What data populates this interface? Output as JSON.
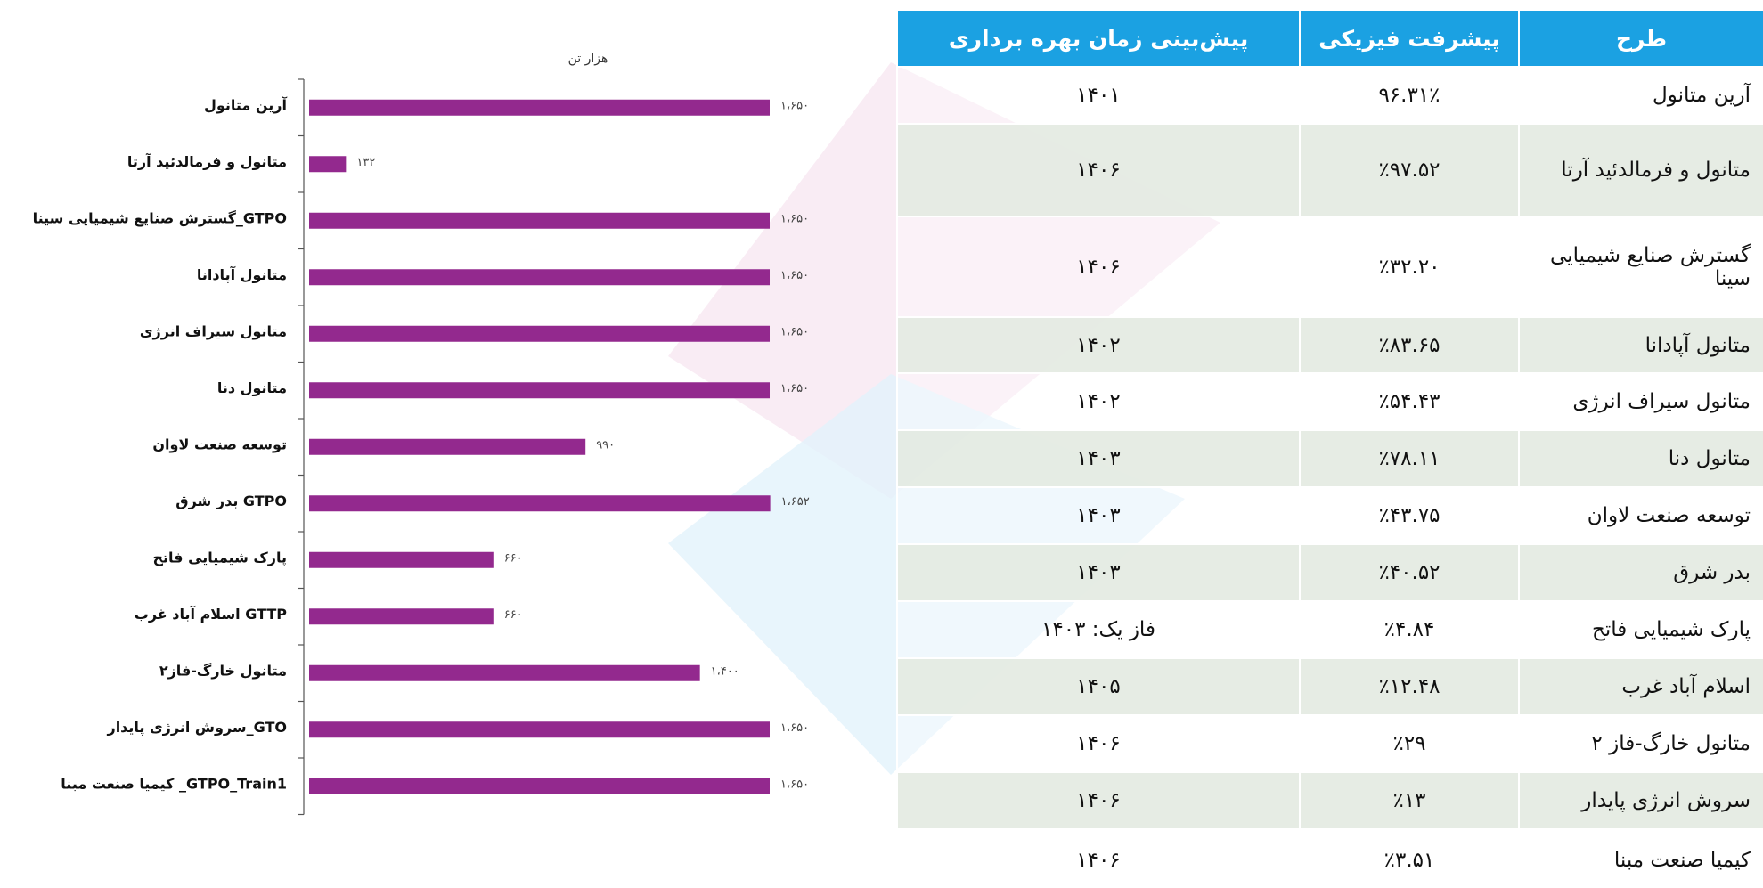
{
  "chart_data": {
    "type": "barh",
    "subtitle": "هزار تن",
    "categories": [
      "آرین متانول",
      "متانول و فرمالدئید آرتا",
      "گسترش صنایع شیمیایی سینا_GTPO",
      "متانول آپادانا",
      "متانول سیراف انرژی",
      "متانول دنا",
      "توسعه صنعت لاوان",
      "بدر شرق  GTPO",
      "پارک شیمیایی فاتح",
      "اسلام آباد غرب  GTTP",
      "متانول خارگ-فاز۲",
      "سروش انرژی پایدار_GTO",
      "کیمیا صنعت مبنا _GTPO_Train1"
    ],
    "values": [
      1650,
      132,
      1650,
      1650,
      1650,
      1650,
      990,
      1652,
      660,
      660,
      1400,
      1650,
      1650
    ],
    "value_labels": [
      "۱،۶۵۰",
      "۱۳۲",
      "۱،۶۵۰",
      "۱،۶۵۰",
      "۱،۶۵۰",
      "۱،۶۵۰",
      "۹۹۰",
      "۱،۶۵۲",
      "۶۶۰",
      "۶۶۰",
      "۱،۴۰۰",
      "۱،۶۵۰",
      "۱،۶۵۰"
    ],
    "color": "#93298e",
    "xlim": [
      0,
      1800
    ]
  },
  "table": {
    "header": [
      "طرح",
      "پیشرفت فیزیکی",
      "پیش‌بینی زمان بهره برداری"
    ],
    "rows": [
      [
        "آرین متانول",
        "۹۶.۳۱٪",
        "۱۴۰۱"
      ],
      [
        "متانول و فرمالدئید آرتا",
        "٪۹۷.۵۲",
        "۱۴۰۶"
      ],
      [
        "گسترش صنایع شیمیایی سینا",
        "٪۳۲.۲۰",
        "۱۴۰۶"
      ],
      [
        "متانول آپادانا",
        "٪۸۳.۶۵",
        "۱۴۰۲"
      ],
      [
        "متانول سیراف انرژی",
        "٪۵۴.۴۳",
        "۱۴۰۲"
      ],
      [
        "متانول دنا",
        "٪۷۸.۱۱",
        "۱۴۰۳"
      ],
      [
        "توسعه صنعت لاوان",
        "٪۴۳.۷۵",
        "۱۴۰۳"
      ],
      [
        "بدر شرق",
        "٪۴۰.۵۲",
        "۱۴۰۳"
      ],
      [
        "پارک شیمیایی فاتح",
        "٪۴.۸۴",
        "فاز یک: ۱۴۰۳"
      ],
      [
        "اسلام آباد غرب",
        "٪۱۲.۴۸",
        "۱۴۰۵"
      ],
      [
        "متانول خارگ-فاز ۲",
        "٪۲۹",
        "۱۴۰۶"
      ],
      [
        "سروش انرژی پایدار",
        "٪۱۳",
        "۱۴۰۶"
      ],
      [
        "کیمیا صنعت مبنا",
        "٪۳.۵۱",
        "۱۴۰۶"
      ]
    ]
  }
}
